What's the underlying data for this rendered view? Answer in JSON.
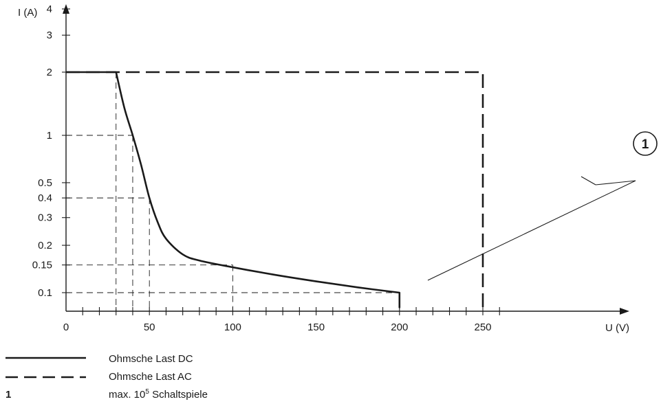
{
  "chart_data": {
    "type": "line",
    "title": "",
    "xlabel": "U (V)",
    "ylabel": "I (A)",
    "xlim": [
      0,
      250
    ],
    "ylim": [
      0.08,
      4.5
    ],
    "y_scale": "log",
    "x_ticks": [
      0,
      50,
      100,
      150,
      200,
      250
    ],
    "y_ticks": [
      0.1,
      0.15,
      0.2,
      0.3,
      0.4,
      0.5,
      1,
      2,
      3,
      4
    ],
    "x_tick_labels": [
      "0",
      "50",
      "100",
      "150",
      "200",
      "250"
    ],
    "y_tick_labels": [
      "0.1",
      "0.15",
      "0.2",
      "0.3",
      "0.4",
      "0.5",
      "1",
      "2",
      "3",
      "4"
    ],
    "series": [
      {
        "name": "Ohmsche Last DC",
        "style": "solid",
        "x": [
          0,
          30,
          35,
          40,
          45,
          50,
          55,
          60,
          70,
          80,
          100,
          125,
          150,
          175,
          200,
          200
        ],
        "y": [
          2,
          2,
          1.35,
          1,
          0.65,
          0.4,
          0.28,
          0.22,
          0.175,
          0.16,
          0.145,
          0.13,
          0.118,
          0.108,
          0.1,
          0.08
        ]
      },
      {
        "name": "Ohmsche Last AC",
        "style": "dashed",
        "x": [
          0,
          250,
          250
        ],
        "y": [
          2,
          2,
          0.08
        ]
      }
    ],
    "reference_lines": [
      {
        "x": 30,
        "y": 2
      },
      {
        "x": 40,
        "y": 1
      },
      {
        "x": 50,
        "y": 0.4
      },
      {
        "x": 100,
        "y": 0.15
      },
      {
        "x": 200,
        "y": 0.1
      }
    ],
    "annotations": [
      {
        "label": "1",
        "targets": [
          "Ohmsche Last AC",
          "Ohmsche Last DC"
        ]
      }
    ],
    "grid": false,
    "legend_position": "bottom-left"
  },
  "legend": {
    "dc_label": "Ohmsche Last DC",
    "ac_label": "Ohmsche Last AC",
    "note_key": "1",
    "note_text_prefix": "max. 10",
    "note_text_exp": "5",
    "note_text_suffix": " Schaltspiele"
  },
  "colors": {
    "line": "#1a1a1a"
  }
}
